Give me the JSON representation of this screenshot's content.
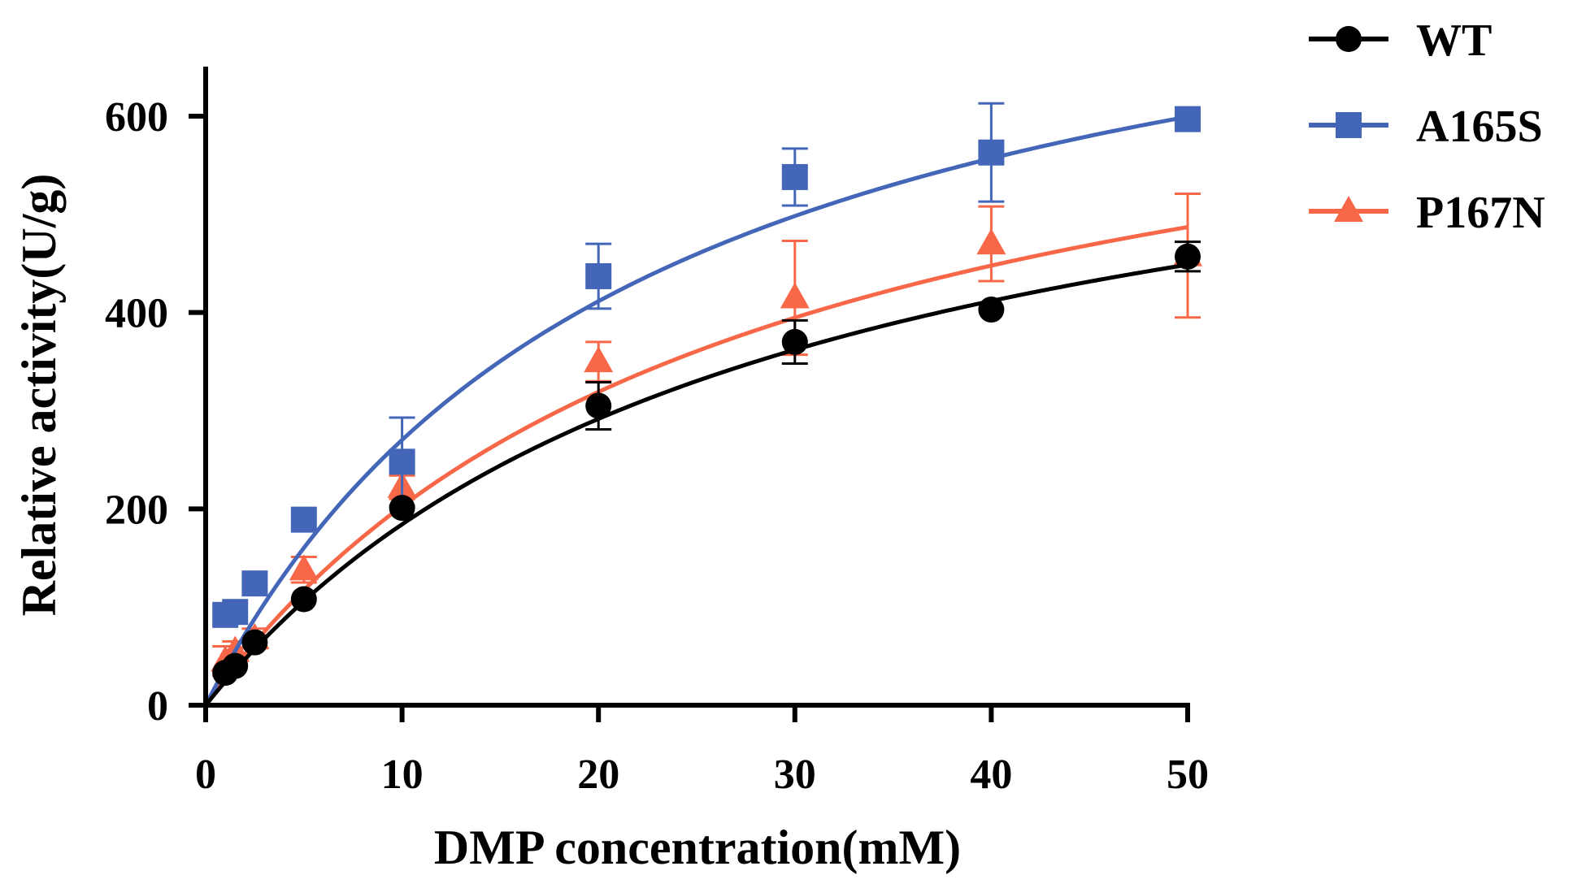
{
  "chart_data": {
    "type": "scatter",
    "title": "",
    "xlabel": "DMP concentration(mM)",
    "ylabel": "Relative activity(U/g)",
    "xlim": [
      0,
      50
    ],
    "ylim": [
      0,
      650
    ],
    "xticks": [
      0,
      10,
      20,
      30,
      40,
      50
    ],
    "yticks": [
      0,
      200,
      400,
      600
    ],
    "xtick_labels": [
      "0",
      "10",
      "20",
      "30",
      "40",
      "50"
    ],
    "ytick_labels": [
      "0",
      "200",
      "400",
      "600"
    ],
    "legend_position": "top-right outside",
    "series": [
      {
        "name": "WT",
        "color": "#000000",
        "marker": "circle",
        "x": [
          1,
          1.5,
          2.5,
          5,
          10,
          20,
          30,
          40,
          50
        ],
        "y": [
          33,
          40,
          64,
          108,
          201,
          305,
          370,
          403,
          457
        ],
        "err": [
          0,
          0,
          0,
          0,
          0,
          24,
          22,
          0,
          15
        ],
        "fit": {
          "model": "michaelis-menten",
          "vmax": 700,
          "km": 28
        }
      },
      {
        "name": "A165S",
        "color": "#4466b8",
        "marker": "square",
        "x": [
          1,
          1.5,
          2.5,
          5,
          10,
          20,
          30,
          40,
          50
        ],
        "y": [
          92,
          95,
          124,
          189,
          248,
          437,
          538,
          563,
          597
        ],
        "err": [
          0,
          0,
          0,
          0,
          45,
          33,
          29,
          50,
          0
        ],
        "fit": {
          "model": "michaelis-menten",
          "vmax": 862,
          "km": 21.9
        }
      },
      {
        "name": "P167N",
        "color": "#f86848",
        "marker": "triangle",
        "x": [
          1,
          1.5,
          2.5,
          5,
          10,
          20,
          30,
          40,
          50
        ],
        "y": [
          45,
          55,
          68,
          138,
          222,
          350,
          415,
          470,
          458
        ],
        "err": [
          15,
          10,
          10,
          13,
          12,
          20,
          58,
          38,
          63
        ],
        "fit": {
          "model": "michaelis-menten",
          "vmax": 750,
          "km": 27
        }
      }
    ]
  }
}
